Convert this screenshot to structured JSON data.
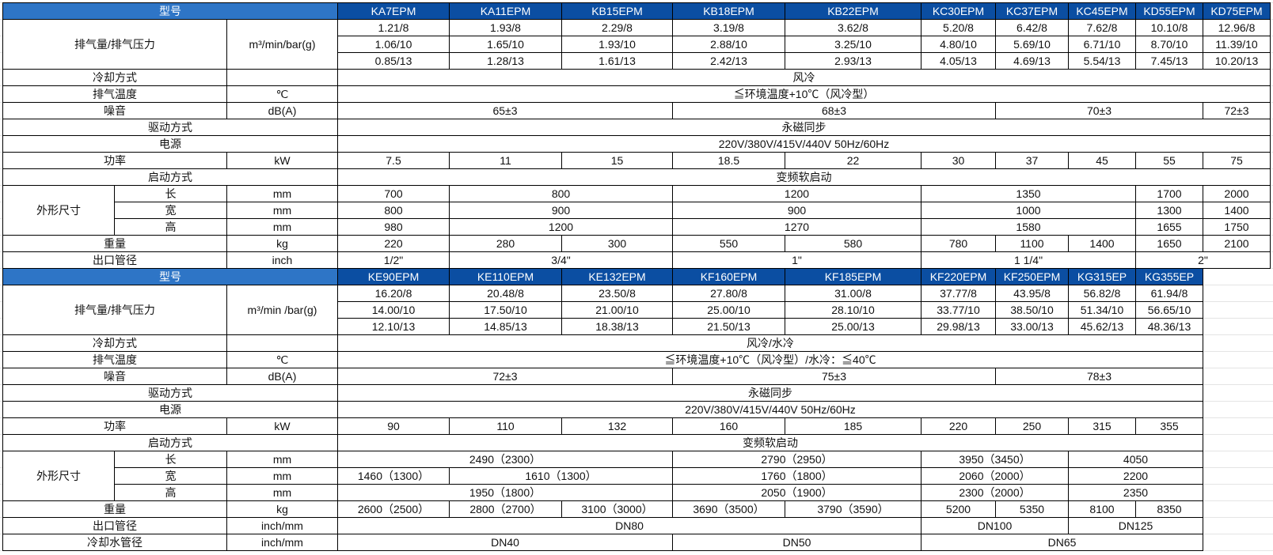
{
  "colors": {
    "header_label_bg": "#2E75C6",
    "header_model_bg": "#0B4EA2",
    "header_text": "#FFFFFF"
  },
  "t1": {
    "model_label": "型号",
    "models": [
      "KA7EPM",
      "KA11EPM",
      "KB15EPM",
      "KB18EPM",
      "KB22EPM",
      "KC30EPM",
      "KC37EPM",
      "KC45EPM",
      "KD55EPM",
      "KD75EPM"
    ],
    "flow": {
      "label": "排气量/排气压力",
      "unit": "m³/min/bar(g)",
      "p8": [
        "1.21/8",
        "1.93/8",
        "2.29/8",
        "3.19/8",
        "3.62/8",
        "5.20/8",
        "6.42/8",
        "7.62/8",
        "10.10/8",
        "12.96/8"
      ],
      "p10": [
        "1.06/10",
        "1.65/10",
        "1.93/10",
        "2.88/10",
        "3.25/10",
        "4.80/10",
        "5.69/10",
        "6.71/10",
        "8.70/10",
        "11.39/10"
      ],
      "p13": [
        "0.85/13",
        "1.28/13",
        "1.61/13",
        "2.42/13",
        "2.93/13",
        "4.05/13",
        "4.69/13",
        "5.54/13",
        "7.45/13",
        "10.20/13"
      ]
    },
    "cooling": {
      "label": "冷却方式",
      "value": "风冷"
    },
    "temp": {
      "label": "排气温度",
      "unit": "℃",
      "value": "≦环境温度+10℃（风冷型）"
    },
    "noise": {
      "label": "噪音",
      "unit": "dB(A)",
      "values": [
        "65±3",
        "68±3",
        "70±3",
        "72±3"
      ]
    },
    "drive": {
      "label": "驱动方式",
      "value": "永磁同步"
    },
    "supply": {
      "label": "电源",
      "value": "220V/380V/415V/440V 50Hz/60Hz"
    },
    "power": {
      "label": "功率",
      "unit": "kW",
      "values": [
        "7.5",
        "11",
        "15",
        "18.5",
        "22",
        "30",
        "37",
        "45",
        "55",
        "75"
      ]
    },
    "start": {
      "label": "启动方式",
      "value": "变频软启动"
    },
    "dims": {
      "label": "外形尺寸",
      "length": {
        "label": "长",
        "unit": "mm",
        "values": [
          "700",
          "800",
          "1200",
          "1350",
          "1700",
          "2000"
        ]
      },
      "width": {
        "label": "宽",
        "unit": "mm",
        "values": [
          "800",
          "900",
          "900",
          "1000",
          "1300",
          "1400"
        ]
      },
      "height": {
        "label": "高",
        "unit": "mm",
        "values": [
          "980",
          "1200",
          "1270",
          "1580",
          "1655",
          "1750"
        ]
      }
    },
    "weight": {
      "label": "重量",
      "unit": "kg",
      "values": [
        "220",
        "280",
        "300",
        "550",
        "580",
        "780",
        "1100",
        "1400",
        "1650",
        "2100"
      ]
    },
    "outlet": {
      "label": "出口管径",
      "unit": "inch",
      "values": [
        "1/2\"",
        "3/4\"",
        "1\"",
        "1 1/4\"",
        "2\""
      ]
    }
  },
  "t2": {
    "model_label": "型号",
    "models": [
      "KE90EPM",
      "KE110EPM",
      "KE132EPM",
      "KF160EPM",
      "KF185EPM",
      "KF220EPM",
      "KF250EPM",
      "KG315EP",
      "KG355EP"
    ],
    "flow": {
      "label": "排气量/排气压力",
      "unit": "m³/min /bar(g)",
      "p8": [
        "16.20/8",
        "20.48/8",
        "23.50/8",
        "27.80/8",
        "31.00/8",
        "37.77/8",
        "43.95/8",
        "56.82/8",
        "61.94/8"
      ],
      "p10": [
        "14.00/10",
        "17.50/10",
        "21.00/10",
        "25.00/10",
        "28.10/10",
        "33.77/10",
        "38.50/10",
        "51.34/10",
        "56.65/10"
      ],
      "p13": [
        "12.10/13",
        "14.85/13",
        "18.38/13",
        "21.50/13",
        "25.00/13",
        "29.98/13",
        "33.00/13",
        "45.62/13",
        "48.36/13"
      ]
    },
    "cooling": {
      "label": "冷却方式",
      "value": "风冷/水冷"
    },
    "temp": {
      "label": "排气温度",
      "unit": "℃",
      "value": "≦环境温度+10℃（风冷型）/水冷：≦40℃"
    },
    "noise": {
      "label": "噪音",
      "unit": "dB(A)",
      "values": [
        "72±3",
        "75±3",
        "78±3"
      ]
    },
    "drive": {
      "label": "驱动方式",
      "value": "永磁同步"
    },
    "supply": {
      "label": "电源",
      "value": "220V/380V/415V/440V 50Hz/60Hz"
    },
    "power": {
      "label": "功率",
      "unit": "kW",
      "values": [
        "90",
        "110",
        "132",
        "160",
        "185",
        "220",
        "250",
        "315",
        "355"
      ]
    },
    "start": {
      "label": "启动方式",
      "value": "变频软启动"
    },
    "dims": {
      "label": "外形尺寸",
      "length": {
        "label": "长",
        "unit": "mm",
        "values": [
          "2490（2300）",
          "2790（2950）",
          "3950（3450）",
          "4050"
        ]
      },
      "width": {
        "label": "宽",
        "unit": "mm",
        "values": [
          "1460（1300）",
          "1610（1300）",
          "1760（1800）",
          "2060（2000）",
          "2200"
        ]
      },
      "height": {
        "label": "高",
        "unit": "mm",
        "values": [
          "1950（1800）",
          "2050（1900）",
          "2300（2000）",
          "2350"
        ]
      }
    },
    "weight": {
      "label": "重量",
      "unit": "kg",
      "values": [
        "2600（2500）",
        "2800（2700）",
        "3100（3000）",
        "3690（3500）",
        "3790（3590）",
        "5200",
        "5350",
        "8100",
        "8350"
      ]
    },
    "outlet": {
      "label": "出口管径",
      "unit": "inch/mm",
      "values": [
        "DN80",
        "DN100",
        "DN125"
      ]
    },
    "water": {
      "label": "冷却水管径",
      "unit": "inch/mm",
      "values": [
        "DN40",
        "DN50",
        "DN65"
      ]
    }
  }
}
